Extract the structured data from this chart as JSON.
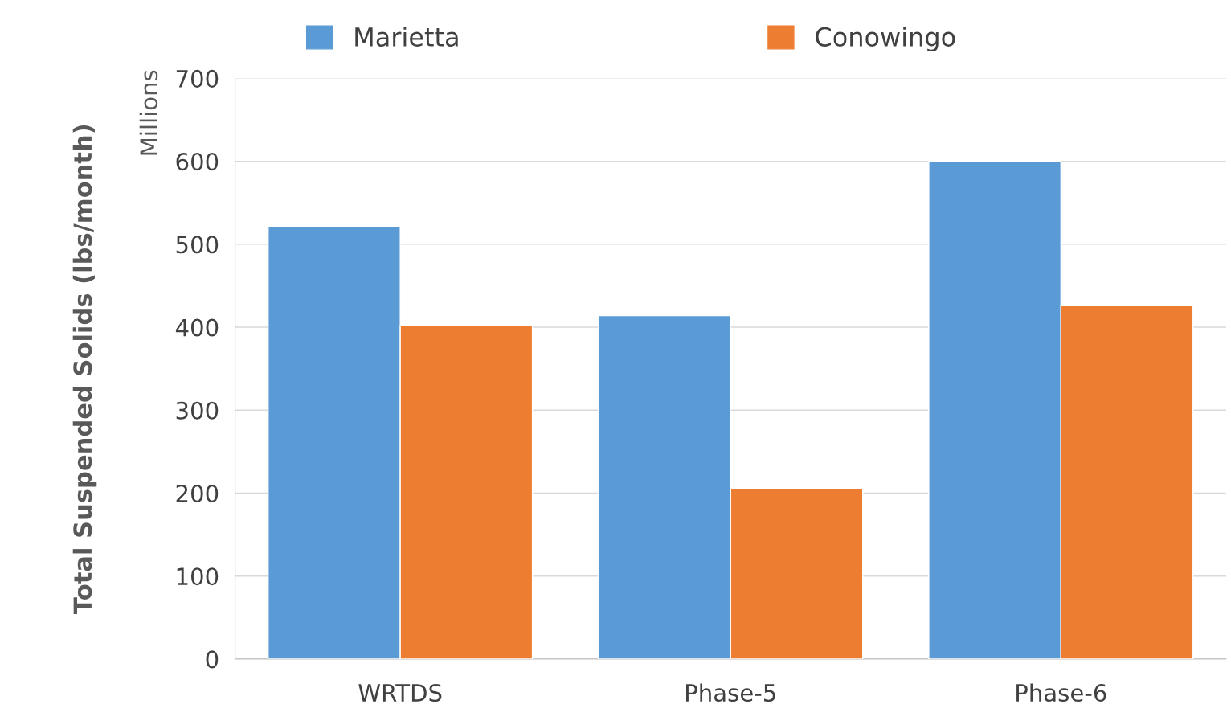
{
  "chart_data": {
    "type": "bar",
    "ylabel": "Total Suspended Solids (lbs/month)",
    "annotations": [
      "Millions"
    ],
    "categories": [
      "WRTDS",
      "Phase-5",
      "Phase-6"
    ],
    "series": [
      {
        "name": "Marietta",
        "color": "#5b9bd5",
        "values": [
          521,
          414,
          600
        ]
      },
      {
        "name": "Conowingo",
        "color": "#ed7d31",
        "values": [
          402,
          205,
          426
        ]
      }
    ],
    "ylim": [
      0,
      700
    ],
    "yticks": [
      0,
      100,
      200,
      300,
      400,
      500,
      600,
      700
    ],
    "grid": "y",
    "legend": "top"
  }
}
